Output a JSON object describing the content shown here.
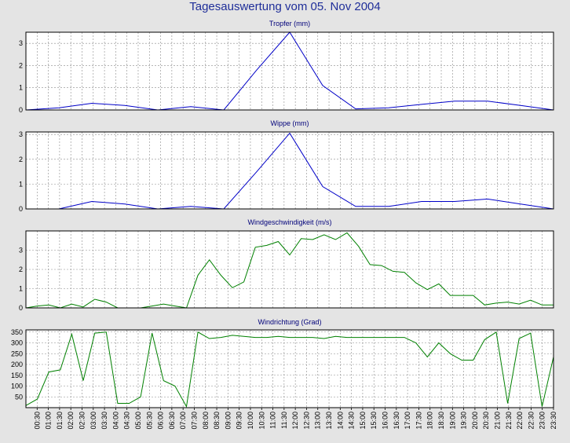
{
  "title": "Tagesauswertung vom 05. Nov 2004",
  "chart_data": [
    {
      "type": "line",
      "title": "Tropfer (mm)",
      "color": "#0000c8",
      "ylim": [
        0,
        3.5
      ],
      "yticks": [
        "0",
        "1",
        "2",
        "3"
      ],
      "values": [
        0,
        0.1,
        0.3,
        0.2,
        0,
        0.15,
        0,
        1.8,
        3.5,
        1.1,
        0.05,
        0.1,
        0.25,
        0.4,
        0.4,
        0.2,
        0
      ]
    },
    {
      "type": "line",
      "title": "Wippe (mm)",
      "color": "#0000c8",
      "ylim": [
        0,
        3.1
      ],
      "yticks": [
        "0",
        "1",
        "2",
        "3"
      ],
      "values": [
        0,
        0,
        0.3,
        0.2,
        0,
        0.1,
        0,
        1.5,
        3.05,
        0.9,
        0.1,
        0.1,
        0.3,
        0.3,
        0.4,
        0.2,
        0
      ]
    },
    {
      "type": "line",
      "title": "Windgeschwindigkeit (m/s)",
      "color": "#008000",
      "ylim": [
        0,
        4
      ],
      "yticks": [
        "0",
        "1",
        "2",
        "3"
      ],
      "values": [
        0,
        0.1,
        0.15,
        0,
        0.2,
        0.05,
        0.45,
        0.3,
        0,
        0,
        0,
        0.1,
        0.2,
        0.1,
        0,
        1.7,
        2.5,
        1.7,
        1.05,
        1.35,
        3.15,
        3.25,
        3.45,
        2.75,
        3.6,
        3.55,
        3.8,
        3.55,
        3.9,
        3.2,
        2.25,
        2.2,
        1.9,
        1.85,
        1.3,
        0.95,
        1.25,
        0.65,
        0.65,
        0.65,
        0.15,
        0.25,
        0.3,
        0.2,
        0.4,
        0.15,
        0.15
      ]
    },
    {
      "type": "line",
      "title": "Windrichtung (Grad)",
      "color": "#008000",
      "ylim": [
        0,
        360
      ],
      "yticks": [
        "50",
        "100",
        "150",
        "200",
        "250",
        "300",
        "350"
      ],
      "values": [
        10,
        40,
        165,
        175,
        340,
        125,
        345,
        350,
        20,
        20,
        50,
        345,
        125,
        100,
        5,
        350,
        320,
        325,
        335,
        330,
        325,
        325,
        330,
        325,
        325,
        325,
        320,
        330,
        325,
        325,
        325,
        325,
        325,
        325,
        300,
        235,
        300,
        250,
        220,
        220,
        315,
        350,
        20,
        320,
        345,
        5,
        235
      ]
    }
  ],
  "x_ticks": [
    "00:30",
    "01:00",
    "01:30",
    "02:00",
    "02:30",
    "03:00",
    "03:30",
    "04:00",
    "04:30",
    "05:00",
    "05:30",
    "06:00",
    "06:30",
    "07:00",
    "07:30",
    "08:00",
    "08:30",
    "09:00",
    "09:30",
    "10:00",
    "10:30",
    "11:00",
    "11:30",
    "12:00",
    "12:30",
    "13:00",
    "13:30",
    "14:00",
    "14:30",
    "15:00",
    "15:30",
    "16:00",
    "16:30",
    "17:00",
    "17:30",
    "18:00",
    "18:30",
    "19:00",
    "19:30",
    "20:00",
    "20:30",
    "21:00",
    "21:30",
    "22:00",
    "22:30",
    "23:00",
    "23:30"
  ]
}
